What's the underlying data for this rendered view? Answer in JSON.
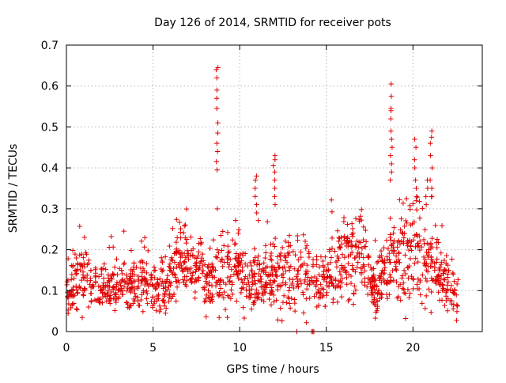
{
  "chart_data": {
    "type": "scatter",
    "title": "Day 126 of 2014, SRMTID for receiver pots",
    "xlabel": "GPS time / hours",
    "ylabel": "SRMTID / TECUs",
    "xlim": [
      0,
      24
    ],
    "ylim": [
      0,
      0.7
    ],
    "x_ticks": [
      0,
      5,
      10,
      15,
      20
    ],
    "x_tick_labels": [
      "0",
      "5",
      "10",
      "15",
      "20"
    ],
    "y_ticks": [
      0,
      0.1,
      0.2,
      0.3,
      0.4,
      0.5,
      0.6,
      0.7
    ],
    "y_tick_labels": [
      "0",
      "0.1",
      "0.2",
      "0.3",
      "0.4",
      "0.5",
      "0.6",
      "0.7"
    ],
    "grid": true,
    "marker": "plus",
    "series_color": "#e00000",
    "baseline_hours": [
      0,
      0.3,
      0.6,
      1.0,
      1.4,
      1.8,
      2.2,
      2.6,
      3.0,
      3.4,
      3.8,
      4.2,
      4.6,
      5.0,
      5.4,
      5.8,
      6.2,
      6.6,
      7.0,
      7.4,
      7.8,
      8.2,
      8.6,
      9.0,
      9.4,
      9.8,
      10.2,
      10.6,
      11.0,
      11.4,
      11.8,
      12.2,
      12.6,
      13.0,
      13.4,
      13.8,
      14.2,
      14.6,
      15.0,
      15.4,
      15.8,
      16.2,
      16.6,
      17.0,
      17.4,
      17.8,
      18.2,
      18.6,
      19.0,
      19.4,
      19.8,
      20.2,
      20.6,
      21.0,
      21.4,
      21.8,
      22.2,
      22.6
    ],
    "baseline_mean": [
      0.1,
      0.11,
      0.12,
      0.14,
      0.12,
      0.11,
      0.11,
      0.1,
      0.12,
      0.11,
      0.11,
      0.12,
      0.11,
      0.1,
      0.11,
      0.12,
      0.15,
      0.17,
      0.16,
      0.15,
      0.14,
      0.13,
      0.14,
      0.13,
      0.15,
      0.17,
      0.12,
      0.11,
      0.12,
      0.13,
      0.14,
      0.13,
      0.14,
      0.13,
      0.14,
      0.15,
      0.13,
      0.12,
      0.14,
      0.15,
      0.16,
      0.18,
      0.19,
      0.2,
      0.14,
      0.11,
      0.13,
      0.16,
      0.17,
      0.19,
      0.21,
      0.2,
      0.18,
      0.17,
      0.15,
      0.12,
      0.1,
      0.09
    ],
    "baseline_spread": [
      0.035,
      0.04,
      0.045,
      0.055,
      0.04,
      0.035,
      0.035,
      0.035,
      0.04,
      0.035,
      0.035,
      0.04,
      0.035,
      0.035,
      0.04,
      0.045,
      0.05,
      0.055,
      0.05,
      0.05,
      0.045,
      0.045,
      0.06,
      0.06,
      0.06,
      0.06,
      0.045,
      0.045,
      0.05,
      0.05,
      0.055,
      0.055,
      0.06,
      0.055,
      0.06,
      0.06,
      0.05,
      0.05,
      0.055,
      0.06,
      0.06,
      0.065,
      0.07,
      0.07,
      0.05,
      0.04,
      0.05,
      0.06,
      0.07,
      0.08,
      0.09,
      0.09,
      0.08,
      0.08,
      0.06,
      0.05,
      0.04,
      0.035
    ],
    "spikes": [
      {
        "x": 8.7,
        "y": [
          0.645,
          0.64,
          0.62,
          0.59,
          0.57,
          0.545,
          0.51,
          0.485,
          0.46,
          0.44,
          0.415,
          0.395,
          0.3
        ]
      },
      {
        "x": 10.95,
        "y": [
          0.38,
          0.37,
          0.35,
          0.33,
          0.31,
          0.29
        ]
      },
      {
        "x": 12.0,
        "y": [
          0.43,
          0.42,
          0.405,
          0.39,
          0.37,
          0.35,
          0.33,
          0.31
        ]
      },
      {
        "x": 18.75,
        "y": [
          0.605,
          0.575,
          0.545,
          0.54,
          0.52,
          0.49,
          0.47,
          0.45,
          0.43,
          0.41,
          0.39,
          0.37
        ]
      },
      {
        "x": 20.15,
        "y": [
          0.47,
          0.45,
          0.42,
          0.4,
          0.37,
          0.35,
          0.33
        ]
      },
      {
        "x": 21.05,
        "y": [
          0.49,
          0.475,
          0.46,
          0.43,
          0.4,
          0.37,
          0.35,
          0.33
        ]
      },
      {
        "x": 20.8,
        "y": [
          0.37,
          0.35,
          0.33,
          0.31
        ]
      }
    ],
    "zero_points": [
      {
        "x": 13.3,
        "y": 0.0
      },
      {
        "x": 14.15,
        "y": 0.0
      },
      {
        "x": 14.22,
        "y": 0.0
      },
      {
        "x": 14.28,
        "y": 0.0
      }
    ]
  }
}
